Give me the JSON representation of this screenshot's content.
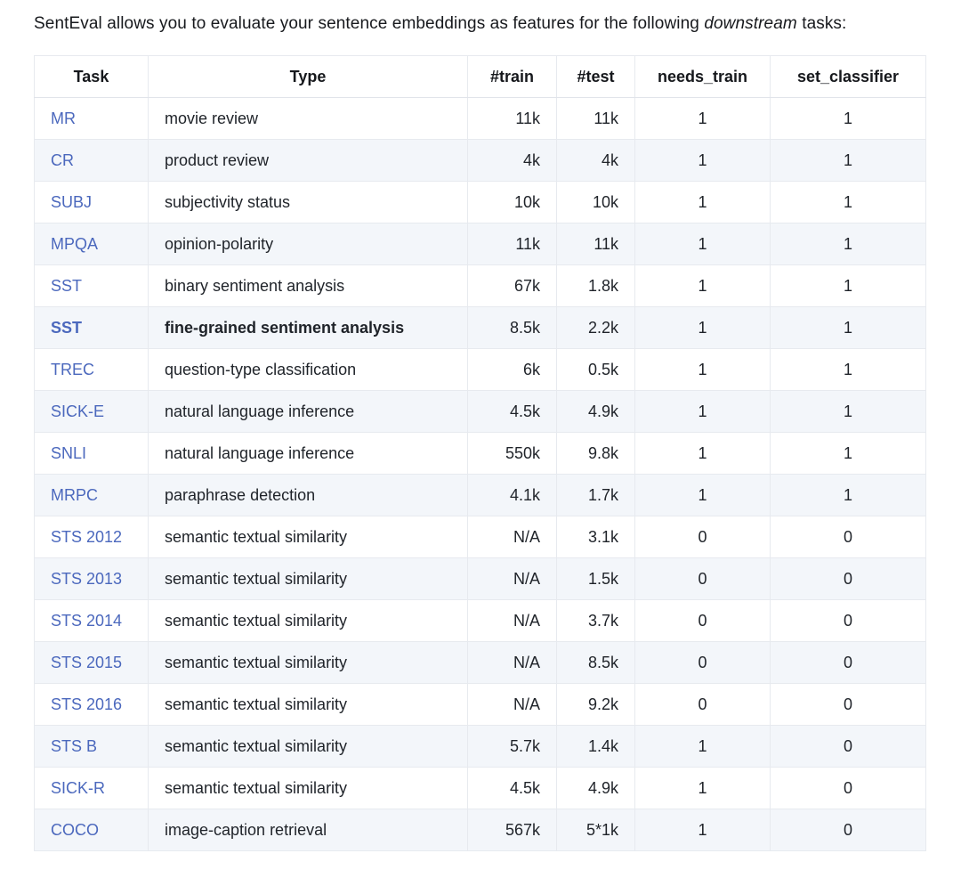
{
  "intro": {
    "before": "SentEval allows you to evaluate your sentence embeddings as features for the following ",
    "italic": "downstream",
    "after": " tasks:"
  },
  "colors": {
    "link_blue": "#4b68bd",
    "stripe": "#f3f6fa",
    "border": "#e7eaef",
    "text": "#1f2329"
  },
  "table": {
    "columns": [
      "Task",
      "Type",
      "#train",
      "#test",
      "needs_train",
      "set_classifier"
    ],
    "rows": [
      {
        "task": "MR",
        "type": "movie review",
        "train": "11k",
        "test": "11k",
        "needs_train": "1",
        "set_classifier": "1",
        "bold": false
      },
      {
        "task": "CR",
        "type": "product review",
        "train": "4k",
        "test": "4k",
        "needs_train": "1",
        "set_classifier": "1",
        "bold": false
      },
      {
        "task": "SUBJ",
        "type": "subjectivity status",
        "train": "10k",
        "test": "10k",
        "needs_train": "1",
        "set_classifier": "1",
        "bold": false
      },
      {
        "task": "MPQA",
        "type": "opinion-polarity",
        "train": "11k",
        "test": "11k",
        "needs_train": "1",
        "set_classifier": "1",
        "bold": false
      },
      {
        "task": "SST",
        "type": "binary sentiment analysis",
        "train": "67k",
        "test": "1.8k",
        "needs_train": "1",
        "set_classifier": "1",
        "bold": false
      },
      {
        "task": "SST",
        "type": "fine-grained sentiment analysis",
        "train": "8.5k",
        "test": "2.2k",
        "needs_train": "1",
        "set_classifier": "1",
        "bold": true
      },
      {
        "task": "TREC",
        "type": "question-type classification",
        "train": "6k",
        "test": "0.5k",
        "needs_train": "1",
        "set_classifier": "1",
        "bold": false
      },
      {
        "task": "SICK-E",
        "type": "natural language inference",
        "train": "4.5k",
        "test": "4.9k",
        "needs_train": "1",
        "set_classifier": "1",
        "bold": false
      },
      {
        "task": "SNLI",
        "type": "natural language inference",
        "train": "550k",
        "test": "9.8k",
        "needs_train": "1",
        "set_classifier": "1",
        "bold": false
      },
      {
        "task": "MRPC",
        "type": "paraphrase detection",
        "train": "4.1k",
        "test": "1.7k",
        "needs_train": "1",
        "set_classifier": "1",
        "bold": false
      },
      {
        "task": "STS 2012",
        "type": "semantic textual similarity",
        "train": "N/A",
        "test": "3.1k",
        "needs_train": "0",
        "set_classifier": "0",
        "bold": false
      },
      {
        "task": "STS 2013",
        "type": "semantic textual similarity",
        "train": "N/A",
        "test": "1.5k",
        "needs_train": "0",
        "set_classifier": "0",
        "bold": false
      },
      {
        "task": "STS 2014",
        "type": "semantic textual similarity",
        "train": "N/A",
        "test": "3.7k",
        "needs_train": "0",
        "set_classifier": "0",
        "bold": false
      },
      {
        "task": "STS 2015",
        "type": "semantic textual similarity",
        "train": "N/A",
        "test": "8.5k",
        "needs_train": "0",
        "set_classifier": "0",
        "bold": false
      },
      {
        "task": "STS 2016",
        "type": "semantic textual similarity",
        "train": "N/A",
        "test": "9.2k",
        "needs_train": "0",
        "set_classifier": "0",
        "bold": false
      },
      {
        "task": "STS B",
        "type": "semantic textual similarity",
        "train": "5.7k",
        "test": "1.4k",
        "needs_train": "1",
        "set_classifier": "0",
        "bold": false
      },
      {
        "task": "SICK-R",
        "type": "semantic textual similarity",
        "train": "4.5k",
        "test": "4.9k",
        "needs_train": "1",
        "set_classifier": "0",
        "bold": false
      },
      {
        "task": "COCO",
        "type": "image-caption retrieval",
        "train": "567k",
        "test": "5*1k",
        "needs_train": "1",
        "set_classifier": "0",
        "bold": false
      }
    ]
  }
}
